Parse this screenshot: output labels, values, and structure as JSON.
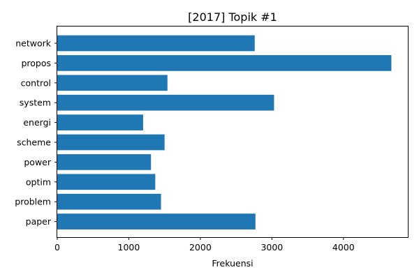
{
  "chart_data": {
    "type": "bar",
    "orientation": "horizontal",
    "title": "[2017] Topik #1",
    "xlabel": "Frekuensi",
    "ylabel": "",
    "categories": [
      "network",
      "propos",
      "control",
      "system",
      "energi",
      "scheme",
      "power",
      "optim",
      "problem",
      "paper"
    ],
    "values": [
      2760,
      4670,
      1540,
      3030,
      1200,
      1500,
      1310,
      1370,
      1450,
      2770
    ],
    "xlim": [
      0,
      4900
    ],
    "xticks": [
      0,
      1000,
      2000,
      3000,
      4000
    ],
    "xtick_labels": [
      "0",
      "1000",
      "2000",
      "3000",
      "4000"
    ],
    "grid": false,
    "bar_color": "#1f77b4"
  }
}
